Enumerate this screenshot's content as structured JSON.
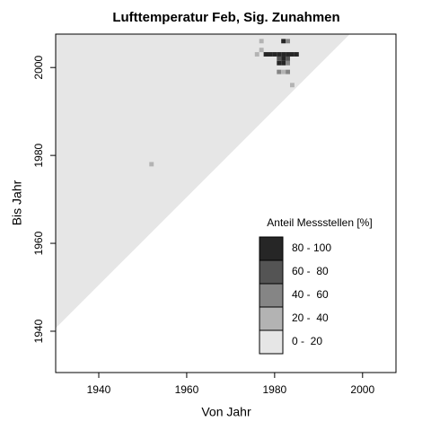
{
  "chart_data": {
    "type": "heatmap",
    "title": "Lufttemperatur Feb, Sig. Zunahmen",
    "x_label": "Von Jahr",
    "y_label": "Bis Jahr",
    "xlim": [
      1930.2,
      2007.6
    ],
    "ylim": [
      1930.6,
      2007.6
    ],
    "xticks": [
      1940,
      1960,
      1980,
      2000
    ],
    "yticks": [
      1940,
      1960,
      1980,
      2000
    ],
    "legend_title": "Anteil Messstellen [%]",
    "legend_position": "bottom-right",
    "series": [
      {
        "name": "80 - 100",
        "color": "#262626",
        "x": [
          1978,
          1979,
          1980,
          1981,
          1982,
          1983,
          1984,
          1985,
          1982,
          1982,
          1981,
          1982
        ],
        "y": [
          2003,
          2003,
          2003,
          2003,
          2003,
          2003,
          2003,
          2003,
          2006,
          2002,
          2001,
          2001
        ]
      },
      {
        "name": "60 -  80",
        "color": "#545454",
        "x": [
          1981,
          1983
        ],
        "y": [
          2002,
          2002
        ]
      },
      {
        "name": "40 -  60",
        "color": "#858585",
        "x": [
          1983,
          1983,
          1981,
          1983
        ],
        "y": [
          2006,
          2001,
          1999,
          1999
        ]
      },
      {
        "name": "20 -  40",
        "color": "#b3b3b3",
        "x": [
          1977,
          1977,
          1976,
          1982,
          1984,
          1952
        ],
        "y": [
          2006,
          2004,
          2003,
          1999,
          1996,
          1978
        ]
      },
      {
        "name": "0 -  20",
        "color": "#e6e6e6",
        "region": {
          "x": [
            1930,
            1930,
            1997.5
          ],
          "y": [
            1940.5,
            2008,
            2008
          ]
        }
      }
    ]
  }
}
